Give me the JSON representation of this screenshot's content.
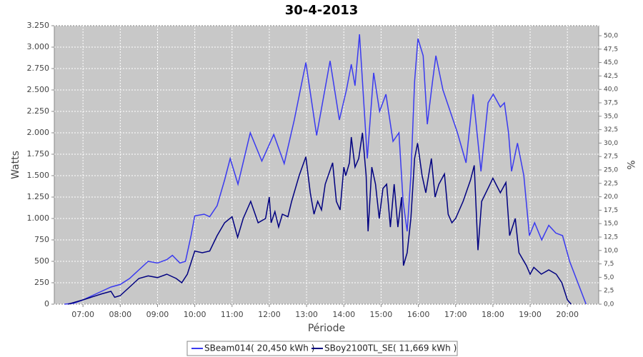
{
  "chart_data": {
    "type": "line",
    "title": "30-4-2013",
    "x_label": "Période",
    "y_label": "Watts",
    "y2_label": "%",
    "xlim": [
      6.23,
      20.84
    ],
    "xticks": [
      {
        "value": 7,
        "label": "07:00"
      },
      {
        "value": 8,
        "label": "08:00"
      },
      {
        "value": 9,
        "label": "09:00"
      },
      {
        "value": 10,
        "label": "10:00"
      },
      {
        "value": 11,
        "label": "11:00"
      },
      {
        "value": 12,
        "label": "12:00"
      },
      {
        "value": 13,
        "label": "13:00"
      },
      {
        "value": 14,
        "label": "14:00"
      },
      {
        "value": 15,
        "label": "15:00"
      },
      {
        "value": 16,
        "label": "16:00"
      },
      {
        "value": 17,
        "label": "17:00"
      },
      {
        "value": 18,
        "label": "18:00"
      },
      {
        "value": 19,
        "label": "19:00"
      },
      {
        "value": 20,
        "label": "20:00"
      }
    ],
    "ylim": [
      0,
      3250
    ],
    "yticks": [
      0,
      250,
      500,
      750,
      {
        "value": 1000,
        "label": "1.000"
      },
      {
        "value": 1250,
        "label": "1.250"
      },
      {
        "value": 1500,
        "label": "1.500"
      },
      {
        "value": 1750,
        "label": "1.750"
      },
      {
        "value": 2000,
        "label": "2.000"
      },
      {
        "value": 2250,
        "label": "2.250"
      },
      {
        "value": 2500,
        "label": "2.500"
      },
      {
        "value": 2750,
        "label": "2.750"
      },
      {
        "value": 3000,
        "label": "3.000"
      },
      {
        "value": 3250,
        "label": "3.250"
      }
    ],
    "y2lim": [
      0,
      51.86
    ],
    "y2ticks": [
      {
        "value": 0,
        "label": "0,0"
      },
      {
        "value": 2.5,
        "label": "2,5"
      },
      {
        "value": 5,
        "label": "5,0"
      },
      {
        "value": 7.5,
        "label": "7,5"
      },
      {
        "value": 10,
        "label": "10,0"
      },
      {
        "value": 12.5,
        "label": "12,5"
      },
      {
        "value": 15,
        "label": "15,0"
      },
      {
        "value": 17.5,
        "label": "17,5"
      },
      {
        "value": 20,
        "label": "20,0"
      },
      {
        "value": 22.5,
        "label": "22,5"
      },
      {
        "value": 25,
        "label": "25,0"
      },
      {
        "value": 27.5,
        "label": "27,5"
      },
      {
        "value": 30,
        "label": "30,0"
      },
      {
        "value": 32.5,
        "label": "32,5"
      },
      {
        "value": 35,
        "label": "35,0"
      },
      {
        "value": 37.5,
        "label": "37,5"
      },
      {
        "value": 40,
        "label": "40,0"
      },
      {
        "value": 42.5,
        "label": "42,5"
      },
      {
        "value": 45,
        "label": "45,0"
      },
      {
        "value": 47.5,
        "label": "47,5"
      },
      {
        "value": 50,
        "label": "50,0"
      }
    ],
    "grid": true,
    "series": [
      {
        "name": "SBeam014( 20,450 kWh )",
        "color": "#3a3af0",
        "x": [
          6.5,
          6.75,
          7.0,
          7.25,
          7.5,
          7.75,
          8.0,
          8.25,
          8.5,
          8.75,
          9.0,
          9.25,
          9.4,
          9.6,
          9.75,
          9.9,
          10.0,
          10.25,
          10.4,
          10.6,
          10.8,
          10.95,
          11.16,
          11.49,
          11.8,
          12.12,
          12.4,
          12.67,
          12.98,
          13.27,
          13.63,
          13.88,
          14.07,
          14.2,
          14.3,
          14.42,
          14.63,
          14.8,
          14.96,
          15.13,
          15.32,
          15.48,
          15.59,
          15.7,
          15.8,
          15.9,
          15.99,
          16.13,
          16.24,
          16.38,
          16.47,
          16.66,
          17.05,
          17.28,
          17.47,
          17.68,
          17.87,
          18.01,
          18.2,
          18.31,
          18.42,
          18.5,
          18.66,
          18.83,
          18.98,
          19.12,
          19.31,
          19.5,
          19.69,
          19.87,
          20.06,
          20.5
        ],
        "values": [
          0,
          10,
          50,
          100,
          150,
          200,
          230,
          300,
          400,
          500,
          480,
          520,
          570,
          480,
          500,
          800,
          1030,
          1050,
          1020,
          1150,
          1450,
          1700,
          1400,
          2000,
          1670,
          1980,
          1640,
          2150,
          2820,
          1970,
          2840,
          2150,
          2500,
          2800,
          2550,
          3150,
          1700,
          2700,
          2250,
          2450,
          1900,
          2000,
          1200,
          850,
          1500,
          2600,
          3100,
          2900,
          2100,
          2600,
          2900,
          2500,
          2000,
          1650,
          2450,
          1550,
          2350,
          2450,
          2300,
          2350,
          2000,
          1550,
          1880,
          1500,
          800,
          950,
          750,
          920,
          830,
          800,
          500,
          0
        ]
      },
      {
        "name": "SBoy2100TL_SE( 11,669 kWh )",
        "color": "#000080",
        "x": [
          6.6,
          7.0,
          7.5,
          7.75,
          7.85,
          8.0,
          8.25,
          8.5,
          8.75,
          9.0,
          9.25,
          9.5,
          9.65,
          9.8,
          10.0,
          10.2,
          10.4,
          10.6,
          10.8,
          11.0,
          11.15,
          11.3,
          11.5,
          11.7,
          11.9,
          12.0,
          12.05,
          12.15,
          12.25,
          12.35,
          12.5,
          12.6,
          12.8,
          12.98,
          13.1,
          13.2,
          13.3,
          13.4,
          13.5,
          13.7,
          13.8,
          13.9,
          14.0,
          14.05,
          14.15,
          14.2,
          14.3,
          14.4,
          14.5,
          14.6,
          14.65,
          14.75,
          14.85,
          14.95,
          15.05,
          15.15,
          15.25,
          15.35,
          15.45,
          15.55,
          15.6,
          15.7,
          15.8,
          15.9,
          15.98,
          16.1,
          16.2,
          16.35,
          16.45,
          16.55,
          16.7,
          16.8,
          16.9,
          17.0,
          17.2,
          17.4,
          17.5,
          17.6,
          17.7,
          17.9,
          18.0,
          18.2,
          18.35,
          18.45,
          18.6,
          18.7,
          18.9,
          19.0,
          19.1,
          19.3,
          19.5,
          19.7,
          19.85,
          20.0,
          20.1
        ],
        "values": [
          0,
          50,
          120,
          150,
          80,
          100,
          200,
          300,
          330,
          310,
          350,
          300,
          250,
          350,
          620,
          600,
          620,
          800,
          950,
          1020,
          780,
          1000,
          1200,
          950,
          1000,
          1250,
          950,
          1080,
          900,
          1050,
          1020,
          1200,
          1500,
          1720,
          1300,
          1050,
          1200,
          1100,
          1400,
          1650,
          1200,
          1100,
          1600,
          1500,
          1650,
          1950,
          1600,
          1700,
          2000,
          1500,
          850,
          1600,
          1400,
          1000,
          1350,
          1400,
          900,
          1400,
          900,
          1250,
          450,
          600,
          1000,
          1700,
          1880,
          1500,
          1300,
          1700,
          1250,
          1400,
          1520,
          1050,
          950,
          1000,
          1200,
          1450,
          1620,
          630,
          1200,
          1380,
          1470,
          1300,
          1420,
          800,
          1000,
          600,
          450,
          350,
          430,
          350,
          400,
          350,
          250,
          50,
          0
        ]
      }
    ]
  }
}
